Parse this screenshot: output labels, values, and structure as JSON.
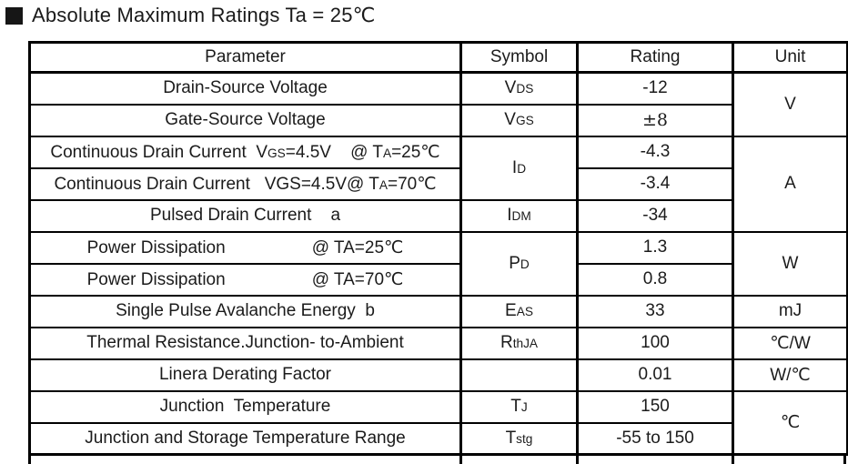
{
  "section": {
    "bullet": "black-square",
    "title": "Absolute Maximum Ratings Ta = 25℃"
  },
  "table": {
    "headers": {
      "parameter": "Parameter",
      "symbol": "Symbol",
      "rating": "Rating",
      "unit": "Unit"
    },
    "rows": [
      {
        "param": "Drain-Source Voltage",
        "symbol": "V~DS~",
        "rating": "-12",
        "unit": "V"
      },
      {
        "param": "Gate-Source Voltage",
        "symbol": "V~GS~",
        "rating": "±8"
      },
      {
        "param": "Continuous Drain Current  V~GS~=4.5V    @ T~A~=25℃",
        "symbol": "I~D~",
        "rating": "-4.3",
        "unit": "A"
      },
      {
        "param": "Continuous Drain Current   VGS=4.5V@ T~A~=70℃",
        "rating": "-3.4"
      },
      {
        "param": "Pulsed Drain Current    a",
        "symbol": "I~DM~",
        "rating": "-34"
      },
      {
        "param": "Power Dissipation                  @ TA=25℃",
        "symbol": "P~D~",
        "rating": "1.3",
        "unit": "W"
      },
      {
        "param": "Power Dissipation                  @ TA=70℃",
        "rating": "0.8"
      },
      {
        "param": "Single Pulse Avalanche Energy  b",
        "symbol": "E~AS~",
        "rating": "33",
        "unit": "mJ"
      },
      {
        "param": "Thermal Resistance.Junction- to-Ambient",
        "symbol": "R~thJA~",
        "rating": "100",
        "unit": "℃/W"
      },
      {
        "param": "Linera Derating Factor",
        "symbol": "",
        "rating": "0.01",
        "unit": "W/℃"
      },
      {
        "param": "Junction  Temperature",
        "symbol": "T~J~",
        "rating": "150",
        "unit": "℃"
      },
      {
        "param": "Junction and Storage Temperature Range",
        "symbol": "T~stg~",
        "rating": "-55 to 150"
      }
    ]
  }
}
